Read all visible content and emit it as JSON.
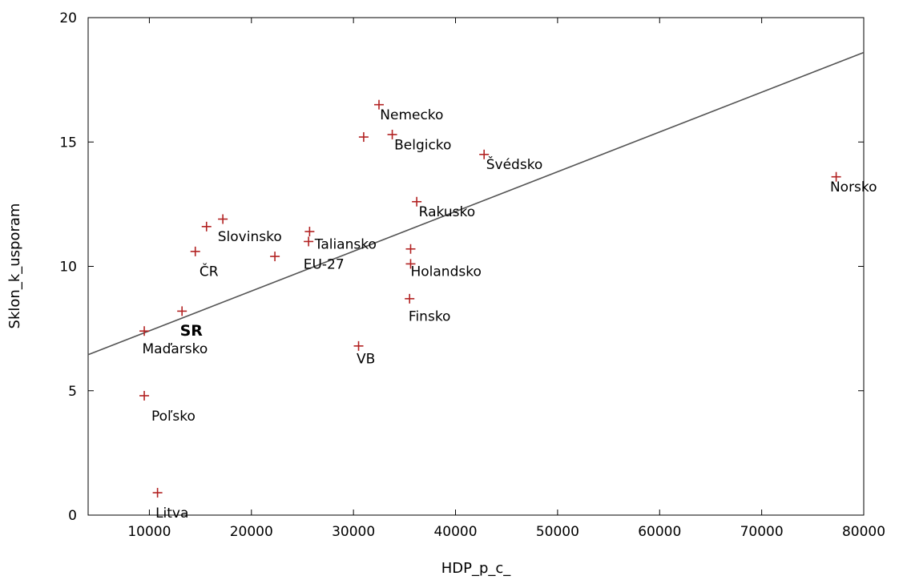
{
  "chart_data": {
    "type": "scatter",
    "xlabel": "HDP_p_c_",
    "ylabel": "Sklon_k_usporam",
    "xlim": [
      4000,
      80000
    ],
    "ylim": [
      0,
      20
    ],
    "x_ticks": [
      10000,
      20000,
      30000,
      40000,
      50000,
      60000,
      70000,
      80000
    ],
    "y_ticks": [
      0,
      5,
      10,
      15,
      20
    ],
    "x_tick_labels": [
      "10000",
      "20000",
      "30000",
      "40000",
      "50000",
      "60000",
      "70000",
      "80000"
    ],
    "y_tick_labels": [
      "0",
      "5",
      "10",
      "15",
      "20"
    ],
    "grid": false,
    "marker_color": "#b22222",
    "line_color": "#555555",
    "points": [
      {
        "x": 32500,
        "y": 16.5
      },
      {
        "x": 31000,
        "y": 15.2
      },
      {
        "x": 33800,
        "y": 15.3
      },
      {
        "x": 42800,
        "y": 14.5
      },
      {
        "x": 77300,
        "y": 13.6
      },
      {
        "x": 36200,
        "y": 12.6
      },
      {
        "x": 17200,
        "y": 11.9
      },
      {
        "x": 15600,
        "y": 11.6
      },
      {
        "x": 25700,
        "y": 11.4
      },
      {
        "x": 25600,
        "y": 11.0
      },
      {
        "x": 14500,
        "y": 10.6
      },
      {
        "x": 22300,
        "y": 10.4
      },
      {
        "x": 35600,
        "y": 10.7
      },
      {
        "x": 35600,
        "y": 10.1
      },
      {
        "x": 35500,
        "y": 8.7
      },
      {
        "x": 13200,
        "y": 8.2
      },
      {
        "x": 9500,
        "y": 7.4
      },
      {
        "x": 30500,
        "y": 6.8
      },
      {
        "x": 9500,
        "y": 4.8
      },
      {
        "x": 10800,
        "y": 0.9
      }
    ],
    "labels": [
      {
        "text": "Nemecko",
        "x": 32600,
        "y": 16.1,
        "bold": false
      },
      {
        "text": "Belgicko",
        "x": 34000,
        "y": 14.9,
        "bold": false
      },
      {
        "text": "Švédsko",
        "x": 43000,
        "y": 14.1,
        "bold": false
      },
      {
        "text": "Norsko",
        "x": 76700,
        "y": 13.2,
        "bold": false
      },
      {
        "text": "Rakusko",
        "x": 36400,
        "y": 12.2,
        "bold": false
      },
      {
        "text": "Slovinsko",
        "x": 16700,
        "y": 11.2,
        "bold": false
      },
      {
        "text": "Taliansko",
        "x": 26200,
        "y": 10.9,
        "bold": false
      },
      {
        "text": "EU-27",
        "x": 25100,
        "y": 10.1,
        "bold": false
      },
      {
        "text": "ČR",
        "x": 14900,
        "y": 9.8,
        "bold": false
      },
      {
        "text": "Holandsko",
        "x": 35600,
        "y": 9.8,
        "bold": false
      },
      {
        "text": "Finsko",
        "x": 35400,
        "y": 8.0,
        "bold": false
      },
      {
        "text": "SR",
        "x": 13000,
        "y": 7.4,
        "bold": true
      },
      {
        "text": "Maďarsko",
        "x": 9300,
        "y": 6.7,
        "bold": false
      },
      {
        "text": "VB",
        "x": 30300,
        "y": 6.3,
        "bold": false
      },
      {
        "text": "Poľsko",
        "x": 10200,
        "y": 4.0,
        "bold": false
      },
      {
        "text": "Litva",
        "x": 10600,
        "y": 0.1,
        "bold": false
      }
    ],
    "trendline": {
      "x": [
        4000,
        80000
      ],
      "y": [
        6.45,
        18.6
      ]
    }
  }
}
